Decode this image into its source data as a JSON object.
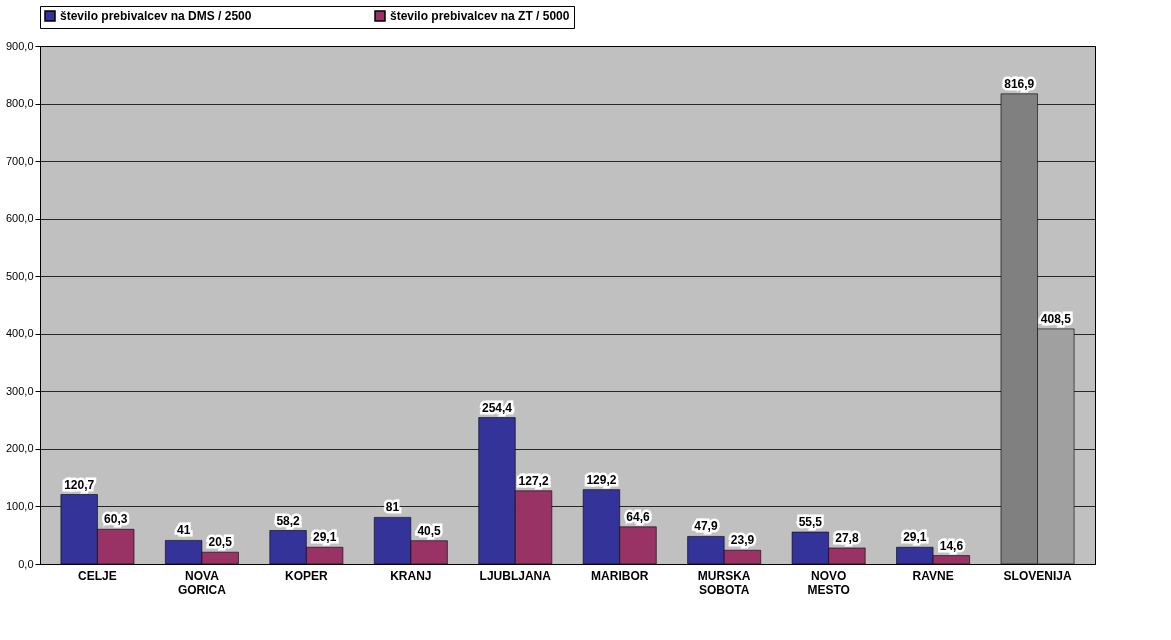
{
  "chart_data": {
    "type": "bar",
    "categories": [
      "CELJE",
      "NOVA GORICA",
      "KOPER",
      "KRANJ",
      "LJUBLJANA",
      "MARIBOR",
      "MURSKA SOBOTA",
      "NOVO MESTO",
      "RAVNE",
      "SLOVENIJA"
    ],
    "series": [
      {
        "name": "število prebivalcev na DMS / 2500",
        "color": "#333399",
        "colors": [
          "#333399",
          "#333399",
          "#333399",
          "#333399",
          "#333399",
          "#333399",
          "#333399",
          "#333399",
          "#333399",
          "#808080"
        ],
        "values": [
          120.7,
          41,
          58.2,
          81,
          254.4,
          129.2,
          47.9,
          55.5,
          29.1,
          816.9
        ],
        "value_labels": [
          "120,7",
          "41",
          "58,2",
          "81",
          "254,4",
          "129,2",
          "47,9",
          "55,5",
          "29,1",
          "816,9"
        ]
      },
      {
        "name": "število prebivalcev na ZT / 5000",
        "color": "#993366",
        "colors": [
          "#993366",
          "#993366",
          "#993366",
          "#993366",
          "#993366",
          "#993366",
          "#993366",
          "#993366",
          "#993366",
          "#a0a0a0"
        ],
        "values": [
          60.3,
          20.5,
          29.1,
          40.5,
          127.2,
          64.6,
          23.9,
          27.8,
          14.6,
          408.5
        ],
        "value_labels": [
          "60,3",
          "20,5",
          "29,1",
          "40,5",
          "127,2",
          "64,6",
          "23,9",
          "27,8",
          "14,6",
          "408,5"
        ]
      }
    ],
    "ylim": [
      0,
      900
    ],
    "yticks": [
      {
        "value": 0,
        "label": "0,0"
      },
      {
        "value": 100,
        "label": "100,0"
      },
      {
        "value": 200,
        "label": "200,0"
      },
      {
        "value": 300,
        "label": "300,0"
      },
      {
        "value": 400,
        "label": "400,0"
      },
      {
        "value": 500,
        "label": "500,0"
      },
      {
        "value": 600,
        "label": "600,0"
      },
      {
        "value": 700,
        "label": "700,0"
      },
      {
        "value": 800,
        "label": "800,0"
      },
      {
        "value": 900,
        "label": "900,0"
      }
    ],
    "grid": "y",
    "legend": "top"
  }
}
